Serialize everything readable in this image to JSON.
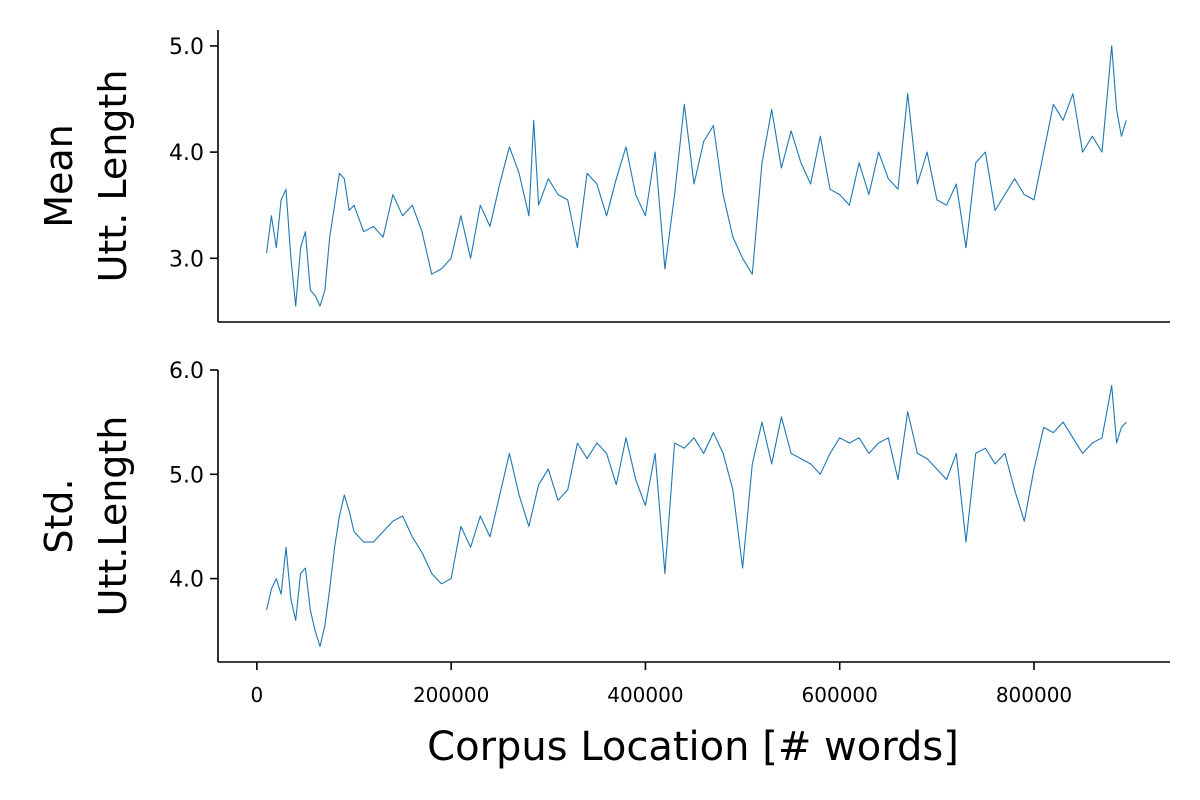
{
  "figure": {
    "xlabel": "Corpus Location [# words]"
  },
  "chart_data": [
    {
      "type": "line",
      "title": "",
      "ylabel_lines": [
        "Mean",
        "Utt. Length"
      ],
      "xlabel": "Corpus Location [# words]",
      "xlim": [
        -40000,
        940000
      ],
      "ylim": [
        2.4,
        5.15
      ],
      "yticks": [
        3.0,
        4.0,
        5.0
      ],
      "ytick_labels": [
        "3.0",
        "4.0",
        "5.0"
      ],
      "grid": false,
      "color": "#1f77b4",
      "series": [
        {
          "x": [
            10000,
            15000,
            20000,
            25000,
            30000,
            35000,
            40000,
            45000,
            50000,
            55000,
            60000,
            65000,
            70000,
            75000,
            80000,
            85000,
            90000,
            95000,
            100000,
            110000,
            120000,
            130000,
            140000,
            150000,
            160000,
            170000,
            180000,
            190000,
            200000,
            210000,
            220000,
            230000,
            240000,
            250000,
            260000,
            270000,
            280000,
            285000,
            290000,
            300000,
            310000,
            320000,
            330000,
            340000,
            350000,
            360000,
            370000,
            380000,
            390000,
            400000,
            410000,
            420000,
            430000,
            440000,
            450000,
            460000,
            470000,
            480000,
            490000,
            500000,
            510000,
            520000,
            530000,
            540000,
            550000,
            560000,
            570000,
            580000,
            590000,
            600000,
            610000,
            620000,
            630000,
            640000,
            650000,
            660000,
            670000,
            680000,
            690000,
            700000,
            710000,
            720000,
            730000,
            740000,
            750000,
            760000,
            770000,
            780000,
            790000,
            800000,
            810000,
            820000,
            830000,
            840000,
            850000,
            860000,
            870000,
            875000,
            880000,
            885000,
            890000,
            895000
          ],
          "values": [
            3.05,
            3.4,
            3.1,
            3.55,
            3.65,
            3.0,
            2.55,
            3.1,
            3.25,
            2.7,
            2.65,
            2.55,
            2.7,
            3.2,
            3.5,
            3.8,
            3.75,
            3.45,
            3.5,
            3.25,
            3.3,
            3.2,
            3.6,
            3.4,
            3.5,
            3.25,
            2.85,
            2.9,
            3.0,
            3.4,
            3.0,
            3.5,
            3.3,
            3.7,
            4.05,
            3.8,
            3.4,
            4.3,
            3.5,
            3.75,
            3.6,
            3.55,
            3.1,
            3.8,
            3.7,
            3.4,
            3.75,
            4.05,
            3.6,
            3.4,
            4.0,
            2.9,
            3.6,
            4.45,
            3.7,
            4.1,
            4.25,
            3.6,
            3.2,
            3.0,
            2.85,
            3.9,
            4.4,
            3.85,
            4.2,
            3.9,
            3.7,
            4.15,
            3.65,
            3.6,
            3.5,
            3.9,
            3.6,
            4.0,
            3.75,
            3.65,
            4.55,
            3.7,
            4.0,
            3.55,
            3.5,
            3.7,
            3.1,
            3.9,
            4.0,
            3.45,
            3.6,
            3.75,
            3.6,
            3.55,
            4.0,
            4.45,
            4.3,
            4.55,
            4.0,
            4.15,
            4.0,
            4.5,
            5.0,
            4.4,
            4.15,
            4.3
          ]
        }
      ]
    },
    {
      "type": "line",
      "title": "",
      "ylabel_lines": [
        "Std.",
        "Utt.Length"
      ],
      "xlabel": "Corpus Location [# words]",
      "xlim": [
        -40000,
        940000
      ],
      "ylim": [
        3.2,
        6.0
      ],
      "yticks": [
        4.0,
        5.0,
        6.0
      ],
      "ytick_labels": [
        "4.0",
        "5.0",
        "6.0"
      ],
      "xticks": [
        0,
        200000,
        400000,
        600000,
        800000
      ],
      "xtick_labels": [
        "0",
        "200000",
        "400000",
        "600000",
        "800000"
      ],
      "grid": false,
      "color": "#1f77b4",
      "series": [
        {
          "x": [
            10000,
            15000,
            20000,
            25000,
            30000,
            35000,
            40000,
            45000,
            50000,
            55000,
            60000,
            65000,
            70000,
            75000,
            80000,
            85000,
            90000,
            95000,
            100000,
            110000,
            120000,
            130000,
            140000,
            150000,
            160000,
            170000,
            180000,
            190000,
            200000,
            210000,
            220000,
            230000,
            240000,
            250000,
            260000,
            270000,
            280000,
            290000,
            300000,
            310000,
            320000,
            330000,
            340000,
            350000,
            360000,
            370000,
            380000,
            390000,
            400000,
            410000,
            420000,
            430000,
            440000,
            450000,
            460000,
            470000,
            480000,
            490000,
            500000,
            510000,
            520000,
            530000,
            540000,
            550000,
            560000,
            570000,
            580000,
            590000,
            600000,
            610000,
            620000,
            630000,
            640000,
            650000,
            660000,
            670000,
            680000,
            690000,
            700000,
            710000,
            720000,
            730000,
            740000,
            750000,
            760000,
            770000,
            780000,
            790000,
            800000,
            810000,
            820000,
            830000,
            840000,
            850000,
            860000,
            870000,
            880000,
            885000,
            890000,
            895000
          ],
          "values": [
            3.7,
            3.9,
            4.0,
            3.85,
            4.3,
            3.8,
            3.6,
            4.05,
            4.1,
            3.7,
            3.5,
            3.35,
            3.55,
            3.9,
            4.3,
            4.6,
            4.8,
            4.65,
            4.45,
            4.35,
            4.35,
            4.45,
            4.55,
            4.6,
            4.4,
            4.25,
            4.05,
            3.95,
            4.0,
            4.5,
            4.3,
            4.6,
            4.4,
            4.8,
            5.2,
            4.8,
            4.5,
            4.9,
            5.05,
            4.75,
            4.85,
            5.3,
            5.15,
            5.3,
            5.2,
            4.9,
            5.35,
            4.95,
            4.7,
            5.2,
            4.05,
            5.3,
            5.25,
            5.35,
            5.2,
            5.4,
            5.2,
            4.85,
            4.1,
            5.1,
            5.5,
            5.1,
            5.55,
            5.2,
            5.15,
            5.1,
            5.0,
            5.2,
            5.35,
            5.3,
            5.35,
            5.2,
            5.3,
            5.35,
            4.95,
            5.6,
            5.2,
            5.15,
            5.05,
            4.95,
            5.2,
            4.35,
            5.2,
            5.25,
            5.1,
            5.2,
            4.85,
            4.55,
            5.05,
            5.45,
            5.4,
            5.5,
            5.35,
            5.2,
            5.3,
            5.35,
            5.85,
            5.3,
            5.45,
            5.5
          ]
        }
      ]
    }
  ]
}
